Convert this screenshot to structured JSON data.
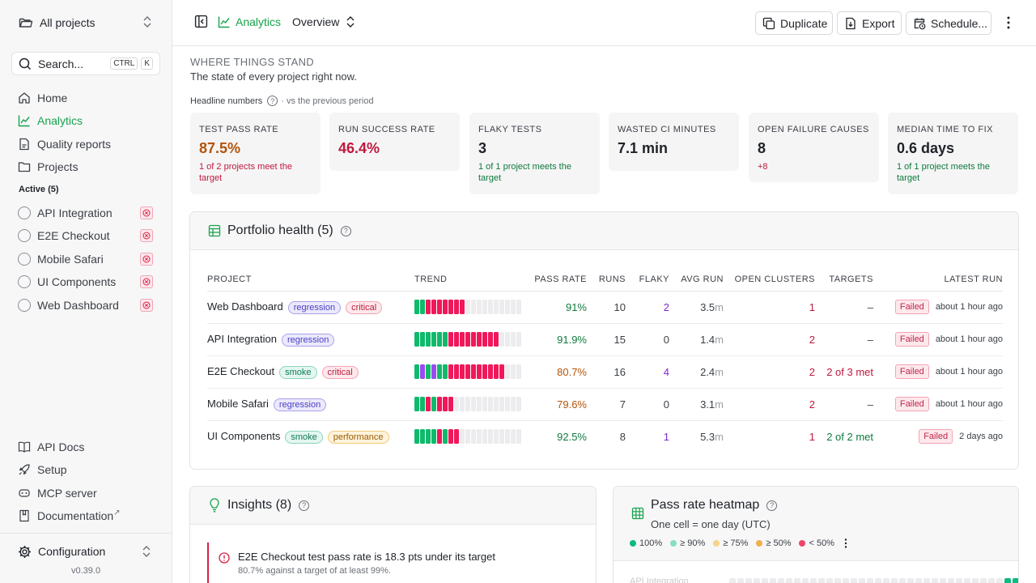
{
  "sidebar": {
    "project_switch": "All projects",
    "search": {
      "placeholder": "Search...",
      "kbd1": "CTRL",
      "kbd2": "K"
    },
    "nav": [
      {
        "label": "Home",
        "icon": "home-icon"
      },
      {
        "label": "Analytics",
        "icon": "chart-line-icon",
        "active": true
      },
      {
        "label": "Quality reports",
        "icon": "file-icon"
      },
      {
        "label": "Projects",
        "icon": "folder-icon"
      }
    ],
    "active_section": "Active (5)",
    "projects": [
      "API Integration",
      "E2E Checkout",
      "Mobile Safari",
      "UI Components",
      "Web Dashboard"
    ],
    "bottom_nav": [
      {
        "label": "API Docs",
        "icon": "book-icon"
      },
      {
        "label": "Setup",
        "icon": "rocket-icon"
      },
      {
        "label": "MCP server",
        "icon": "server-icon"
      },
      {
        "label": "Documentation",
        "icon": "bookmark-icon",
        "external": "↗"
      }
    ],
    "configuration": "Configuration",
    "version": "v0.39.0"
  },
  "topbar": {
    "breadcrumb_analytics": "Analytics",
    "view": "Overview",
    "buttons": {
      "duplicate": "Duplicate",
      "export": "Export",
      "schedule": "Schedule..."
    }
  },
  "header": {
    "eyebrow": "WHERE THINGS STAND",
    "subtitle": "The state of every project right now.",
    "headline": "Headline numbers",
    "vs": "· vs the previous period"
  },
  "metrics": [
    {
      "label": "TEST PASS RATE",
      "value": "87.5%",
      "note": "1 of 2 projects meet the target",
      "color": "#b45309",
      "note_color": "#c0183d"
    },
    {
      "label": "RUN SUCCESS RATE",
      "value": "46.4%",
      "note": "",
      "color": "#c0183d",
      "note_color": "#c0183d"
    },
    {
      "label": "FLAKY TESTS",
      "value": "3",
      "note": "1 of 1 project meets the target",
      "color": "#1f2328",
      "note_color": "#0f7a3e"
    },
    {
      "label": "WASTED CI MINUTES",
      "value": "7.1 min",
      "note": "",
      "color": "#1f2328",
      "note_color": "#1f2328"
    },
    {
      "label": "OPEN FAILURE CAUSES",
      "value": "8",
      "note": "+8",
      "color": "#1f2328",
      "note_color": "#c0183d"
    },
    {
      "label": "MEDIAN TIME TO FIX",
      "value": "0.6 days",
      "note": "1 of 1 project meets the target",
      "color": "#1f2328",
      "note_color": "#0f7a3e"
    }
  ],
  "portfolio": {
    "title": "Portfolio health (5)",
    "columns": {
      "project": "PROJECT",
      "trend": "TREND",
      "pass_rate": "PASS RATE",
      "runs": "RUNS",
      "flaky": "FLAKY",
      "avg_run": "AVG RUN",
      "open_clusters": "OPEN CLUSTERS",
      "targets": "TARGETS",
      "latest_run": "LATEST RUN"
    },
    "rows": [
      {
        "project": "Web Dashboard",
        "tags": [
          "regression",
          "critical"
        ],
        "trend": "ggrrrrrrreeeeeeeeee",
        "pass_rate": "91%",
        "pass_color": "green",
        "runs": "10",
        "flaky": "2",
        "flaky_color": "purple",
        "avg_run": "3.5",
        "avg_unit": "m",
        "open_clusters": "1",
        "targets": "–",
        "targets_color": "gray",
        "latest_status": "Failed",
        "latest_time": "about 1 hour ago"
      },
      {
        "project": "API Integration",
        "tags": [
          "regression"
        ],
        "trend": "ggggggrrrrrrrrreeee",
        "pass_rate": "91.9%",
        "pass_color": "green",
        "runs": "15",
        "flaky": "0",
        "flaky_color": "gray",
        "avg_run": "1.4",
        "avg_unit": "m",
        "open_clusters": "2",
        "targets": "–",
        "targets_color": "gray",
        "latest_status": "Failed",
        "latest_time": "about 1 hour ago"
      },
      {
        "project": "E2E Checkout",
        "tags": [
          "smoke",
          "critical"
        ],
        "trend": "gpgpggrrrrrrrrrreee",
        "pass_rate": "80.7%",
        "pass_color": "orange",
        "runs": "16",
        "flaky": "4",
        "flaky_color": "purple",
        "avg_run": "2.4",
        "avg_unit": "m",
        "open_clusters": "2",
        "targets": "2 of 3 met",
        "targets_color": "red",
        "latest_status": "Failed",
        "latest_time": "about 1 hour ago"
      },
      {
        "project": "Mobile Safari",
        "tags": [
          "regression"
        ],
        "trend": "ggrgrrreeeeeeeeeeee",
        "pass_rate": "79.6%",
        "pass_color": "orange",
        "runs": "7",
        "flaky": "0",
        "flaky_color": "gray",
        "avg_run": "3.1",
        "avg_unit": "m",
        "open_clusters": "2",
        "targets": "–",
        "targets_color": "gray",
        "latest_status": "Failed",
        "latest_time": "about 1 hour ago"
      },
      {
        "project": "UI Components",
        "tags": [
          "smoke",
          "performance"
        ],
        "trend": "ggggrgrreeeeeeeeeee",
        "pass_rate": "92.5%",
        "pass_color": "green",
        "runs": "8",
        "flaky": "1",
        "flaky_color": "purple",
        "avg_run": "5.3",
        "avg_unit": "m",
        "open_clusters": "1",
        "targets": "2 of 2 met",
        "targets_color": "green",
        "latest_status": "Failed",
        "latest_time": "2 days ago"
      }
    ]
  },
  "insights": {
    "title": "Insights (8)",
    "first": {
      "title": "E2E Checkout test pass rate is 18.3 pts under its target",
      "desc": "80.7% against a target of at least 99%."
    }
  },
  "heatmap": {
    "title": "Pass rate heatmap",
    "subtitle": "One cell = one day (UTC)",
    "legend": [
      {
        "label": "100%",
        "color": "#10b981"
      },
      {
        "label": "≥ 90%",
        "color": "#86dfc0"
      },
      {
        "label": "≥ 75%",
        "color": "#f7d48a"
      },
      {
        "label": "≥ 50%",
        "color": "#f2b04a"
      },
      {
        "label": "< 50%",
        "color": "#f0456a"
      }
    ],
    "first_row": {
      "name": "API Integration",
      "cells": "eeeeeeeeeeeeeeeeeeeeeeeeeeeeeeeeeeggggggay"
    }
  },
  "colors": {
    "green": "#0fba6b",
    "red": "#f0185a",
    "purple": "#9a4bf0",
    "empty": "#ececee",
    "accent": "#16a34a"
  }
}
